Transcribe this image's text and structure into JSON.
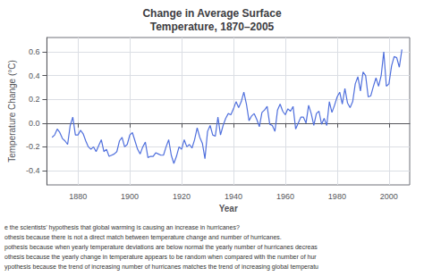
{
  "chart_data": {
    "type": "line",
    "title": "Change in Average Surface\nTemperature, 1870–2005",
    "xlabel": "Year",
    "ylabel": "Temperature Change (°C)",
    "xlim": [
      1868,
      2008
    ],
    "ylim": [
      -0.52,
      0.72
    ],
    "xticks": [
      1880,
      1900,
      1920,
      1940,
      1960,
      1980,
      2000
    ],
    "yticks": [
      -0.4,
      -0.2,
      {
        "value": 0,
        "label": "0.0"
      },
      0.2,
      0.4,
      0.6
    ],
    "grid": true,
    "annotations": [
      "e the scientists’ hypothesis that global warming is causing an increase in hurricanes?",
      "othesis because there is not a direct match between temperature change and number of hurricanes.",
      "pothesis because when yearly temperature deviations are below normal the yearly number of hurricanes decreas",
      "othesis because the yearly change in temperature appears to be random when compared with the number of hur",
      "ypothesis because the trend of increasing number of hurricanes matches the trend of increasing global temperatu"
    ],
    "x": [
      1870,
      1871,
      1872,
      1873,
      1874,
      1875,
      1876,
      1877,
      1878,
      1879,
      1880,
      1881,
      1882,
      1883,
      1884,
      1885,
      1886,
      1887,
      1888,
      1889,
      1890,
      1891,
      1892,
      1893,
      1894,
      1895,
      1896,
      1897,
      1898,
      1899,
      1900,
      1901,
      1902,
      1903,
      1904,
      1905,
      1906,
      1907,
      1908,
      1909,
      1910,
      1911,
      1912,
      1913,
      1914,
      1915,
      1916,
      1917,
      1918,
      1919,
      1920,
      1921,
      1922,
      1923,
      1924,
      1925,
      1926,
      1927,
      1928,
      1929,
      1930,
      1931,
      1932,
      1933,
      1934,
      1935,
      1936,
      1937,
      1938,
      1939,
      1940,
      1941,
      1942,
      1943,
      1944,
      1945,
      1946,
      1947,
      1948,
      1949,
      1950,
      1951,
      1952,
      1953,
      1954,
      1955,
      1956,
      1957,
      1958,
      1959,
      1960,
      1961,
      1962,
      1963,
      1964,
      1965,
      1966,
      1967,
      1968,
      1969,
      1970,
      1971,
      1972,
      1973,
      1974,
      1975,
      1976,
      1977,
      1978,
      1979,
      1980,
      1981,
      1982,
      1983,
      1984,
      1985,
      1986,
      1987,
      1988,
      1989,
      1990,
      1991,
      1992,
      1993,
      1994,
      1995,
      1996,
      1997,
      1998,
      1999,
      2000,
      2001,
      2002,
      2003,
      2004,
      2005
    ],
    "values": [
      -0.12,
      -0.1,
      -0.05,
      -0.08,
      -0.13,
      -0.15,
      -0.18,
      -0.02,
      0.05,
      -0.1,
      -0.1,
      -0.06,
      -0.09,
      -0.15,
      -0.2,
      -0.22,
      -0.2,
      -0.24,
      -0.19,
      -0.14,
      -0.24,
      -0.22,
      -0.28,
      -0.27,
      -0.26,
      -0.24,
      -0.15,
      -0.12,
      -0.2,
      -0.18,
      -0.1,
      -0.08,
      -0.15,
      -0.22,
      -0.26,
      -0.2,
      -0.16,
      -0.29,
      -0.28,
      -0.28,
      -0.25,
      -0.26,
      -0.27,
      -0.27,
      -0.2,
      -0.14,
      -0.27,
      -0.34,
      -0.28,
      -0.2,
      -0.22,
      -0.14,
      -0.2,
      -0.18,
      -0.21,
      -0.14,
      -0.04,
      -0.12,
      -0.17,
      -0.3,
      -0.07,
      -0.02,
      -0.1,
      -0.11,
      0.05,
      -0.1,
      -0.02,
      0.04,
      0.08,
      0.07,
      0.12,
      0.18,
      0.13,
      0.18,
      0.26,
      0.16,
      0.02,
      0.06,
      0.08,
      0.03,
      -0.03,
      0.09,
      0.11,
      0.14,
      -0.01,
      -0.02,
      -0.07,
      0.11,
      0.16,
      0.1,
      0.07,
      0.12,
      0.1,
      0.14,
      -0.05,
      0.0,
      0.05,
      0.05,
      0.0,
      0.15,
      0.08,
      -0.02,
      0.08,
      0.1,
      -0.01,
      0.04,
      -0.02,
      0.18,
      0.09,
      0.15,
      0.22,
      0.26,
      0.16,
      0.29,
      0.17,
      0.13,
      0.18,
      0.33,
      0.39,
      0.27,
      0.43,
      0.4,
      0.22,
      0.23,
      0.31,
      0.38,
      0.31,
      0.4,
      0.6,
      0.31,
      0.33,
      0.48,
      0.56,
      0.55,
      0.47,
      0.62
    ]
  }
}
